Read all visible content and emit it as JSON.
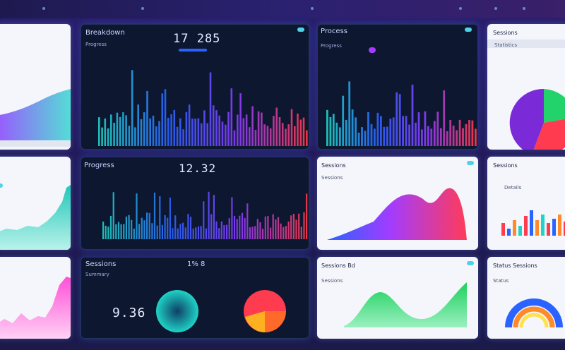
{
  "panels": {
    "p1": {
      "title": "",
      "rows": [
        "",
        "",
        ""
      ],
      "ylabels": [
        ""
      ]
    },
    "p2": {
      "title": "Breakdown",
      "subtitle": "Progress",
      "value": "17 285"
    },
    "p3": {
      "title": "Process",
      "subtitle": "Progress"
    },
    "p4": {
      "title": "Sessions",
      "subtitle": "Statistics"
    },
    "p5": {
      "title": "",
      "ylabels": [
        "",
        "",
        ""
      ]
    },
    "p6": {
      "title": "Progress",
      "value": "12.32"
    },
    "p7": {
      "title": "Sessions",
      "subtitle": "Sessions"
    },
    "p8": {
      "title": "Sessions",
      "subtitle": "Details"
    },
    "p9": {
      "title": ""
    },
    "p10": {
      "title": "Sessions",
      "subtitle": "Summary",
      "value": "9.36",
      "badge": "1% 8"
    },
    "p11": {
      "title": "Sessions Bd",
      "subtitle": "Sessions"
    },
    "p12": {
      "title": "Status Sessions",
      "subtitle": "Status"
    }
  },
  "colors": {
    "teal": "#1fd3c6",
    "purple": "#8a3cff",
    "red": "#ff3b4f",
    "green": "#22d36b",
    "blue": "#2a63ff"
  }
}
